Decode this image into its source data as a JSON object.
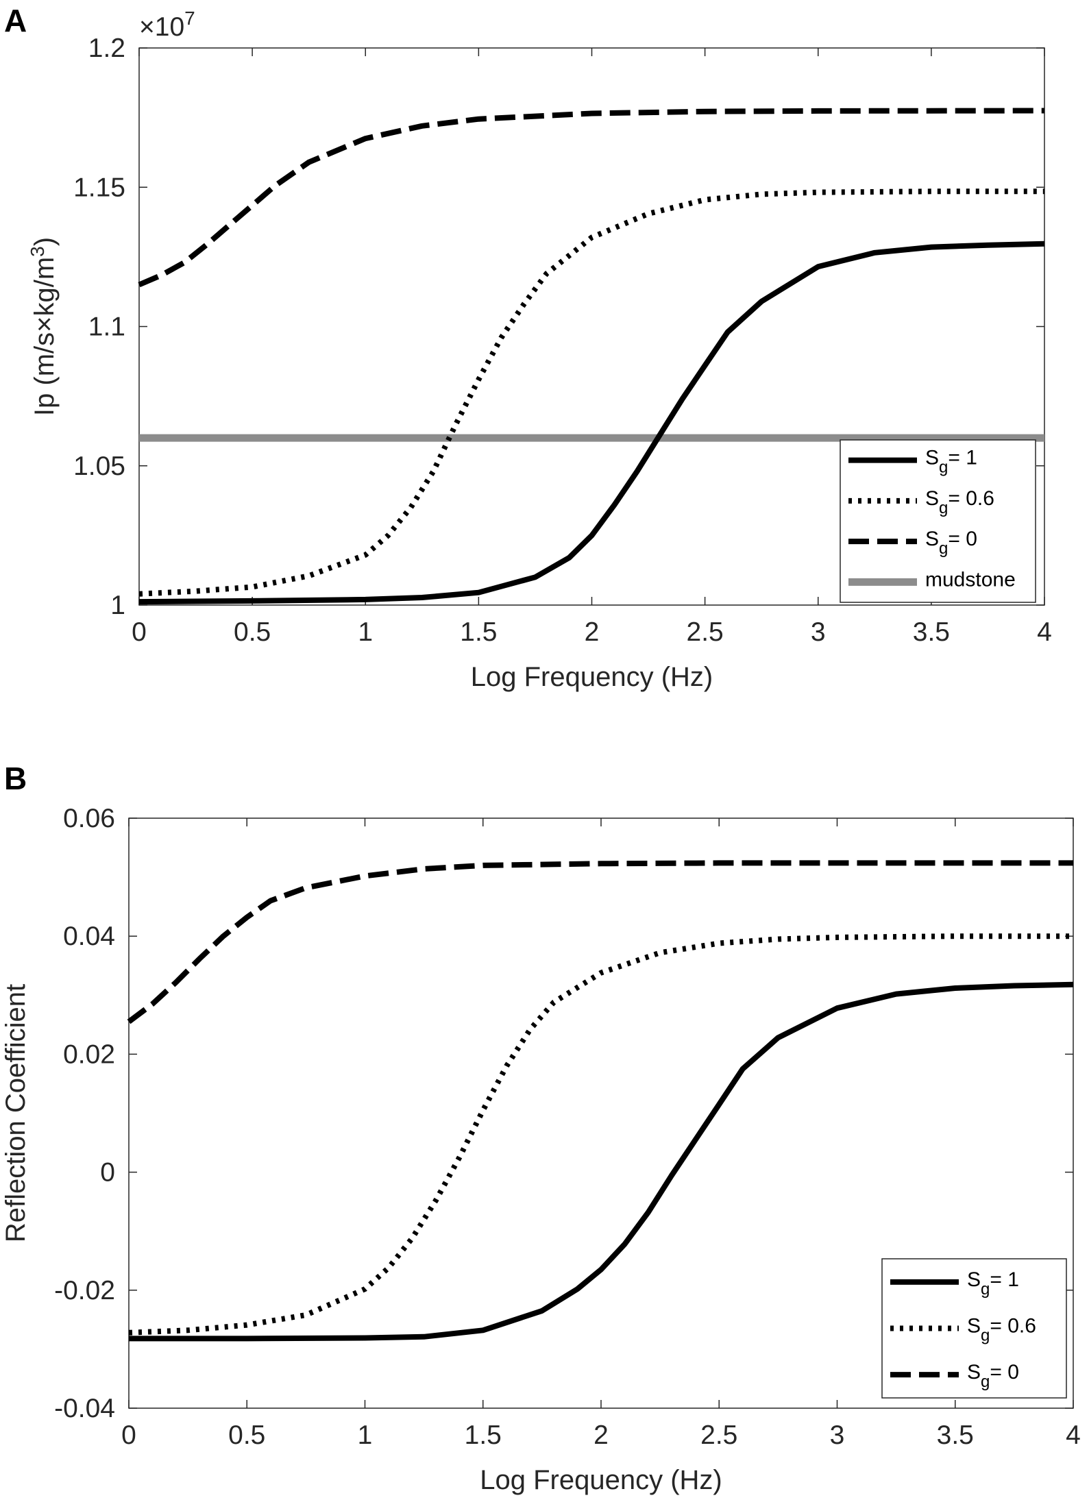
{
  "chart_data": [
    {
      "panel_label": "A",
      "type": "line",
      "xlabel": "Log Frequency (Hz)",
      "ylabel_main": "Ip (m/s×kg/m",
      "ylabel_sup": "3",
      "ylabel_end": ")",
      "y_exponent_prefix": "×10",
      "y_exponent_power": "7",
      "xlim": [
        0,
        4
      ],
      "ylim": [
        1.0,
        1.2
      ],
      "x_ticks": [
        0,
        0.5,
        1,
        1.5,
        2,
        2.5,
        3,
        3.5,
        4
      ],
      "x_tick_labels": [
        "0",
        "0.5",
        "1",
        "1.5",
        "2",
        "2.5",
        "3",
        "3.5",
        "4"
      ],
      "y_ticks": [
        1.0,
        1.05,
        1.1,
        1.15,
        1.2
      ],
      "y_tick_labels": [
        "1",
        "1.05",
        "1.1",
        "1.15",
        "1.2"
      ],
      "legend_position": "bottom-right",
      "series": [
        {
          "name": "Sg = 1",
          "legend_main": "S",
          "legend_sub": "g",
          "legend_rest": "= 1",
          "style": "solid",
          "color": "#000000",
          "x": [
            0,
            0.5,
            1,
            1.25,
            1.5,
            1.75,
            1.9,
            2.0,
            2.1,
            2.2,
            2.3,
            2.4,
            2.5,
            2.6,
            2.75,
            3.0,
            3.25,
            3.5,
            3.75,
            4
          ],
          "y": [
            1.0012,
            1.0015,
            1.002,
            1.0027,
            1.0045,
            1.01,
            1.017,
            1.025,
            1.036,
            1.048,
            1.061,
            1.074,
            1.086,
            1.098,
            1.109,
            1.1215,
            1.1265,
            1.1285,
            1.1292,
            1.1297
          ]
        },
        {
          "name": "Sg = 0.6",
          "legend_main": "S",
          "legend_sub": "g",
          "legend_rest": "= 0.6",
          "style": "dotted",
          "color": "#000000",
          "x": [
            0,
            0.25,
            0.5,
            0.75,
            1.0,
            1.1,
            1.2,
            1.3,
            1.4,
            1.5,
            1.6,
            1.7,
            1.8,
            2.0,
            2.25,
            2.5,
            2.75,
            3.0,
            3.5,
            4
          ],
          "y": [
            1.004,
            1.005,
            1.0065,
            1.0105,
            1.018,
            1.025,
            1.035,
            1.048,
            1.065,
            1.081,
            1.096,
            1.108,
            1.119,
            1.132,
            1.1405,
            1.1455,
            1.1475,
            1.1482,
            1.1485,
            1.1485
          ]
        },
        {
          "name": "Sg = 0",
          "legend_main": "S",
          "legend_sub": "g",
          "legend_rest": "= 0",
          "style": "dashed",
          "color": "#000000",
          "x": [
            0,
            0.1,
            0.2,
            0.3,
            0.4,
            0.5,
            0.6,
            0.75,
            1.0,
            1.25,
            1.5,
            2.0,
            2.5,
            3.0,
            4
          ],
          "y": [
            1.115,
            1.1185,
            1.123,
            1.1295,
            1.1365,
            1.1435,
            1.1505,
            1.159,
            1.1675,
            1.172,
            1.1745,
            1.1765,
            1.1772,
            1.1774,
            1.1775
          ]
        },
        {
          "name": "mudstone",
          "legend_main": "mudstone",
          "legend_sub": "",
          "legend_rest": "",
          "style": "solid-gray",
          "color": "#8c8c8c",
          "x": [
            0,
            4
          ],
          "y": [
            1.06,
            1.06
          ]
        }
      ]
    },
    {
      "panel_label": "B",
      "type": "line",
      "xlabel": "Log Frequency (Hz)",
      "ylabel_main": "Reflection Coefficient",
      "ylabel_sup": "",
      "ylabel_end": "",
      "y_exponent_prefix": "",
      "y_exponent_power": "",
      "xlim": [
        0,
        4
      ],
      "ylim": [
        -0.04,
        0.06
      ],
      "x_ticks": [
        0,
        0.5,
        1,
        1.5,
        2,
        2.5,
        3,
        3.5,
        4
      ],
      "x_tick_labels": [
        "0",
        "0.5",
        "1",
        "1.5",
        "2",
        "2.5",
        "3",
        "3.5",
        "4"
      ],
      "y_ticks": [
        -0.04,
        -0.02,
        0,
        0.02,
        0.04,
        0.06
      ],
      "y_tick_labels": [
        "-0.04",
        "-0.02",
        "0",
        "0.02",
        "0.04",
        "0.06"
      ],
      "legend_position": "bottom-right",
      "series": [
        {
          "name": "Sg = 1",
          "legend_main": "S",
          "legend_sub": "g",
          "legend_rest": "= 1",
          "style": "solid",
          "color": "#000000",
          "x": [
            0,
            0.5,
            1,
            1.25,
            1.5,
            1.75,
            1.9,
            2.0,
            2.1,
            2.2,
            2.3,
            2.4,
            2.5,
            2.6,
            2.75,
            3.0,
            3.25,
            3.5,
            3.75,
            4
          ],
          "y": [
            -0.0282,
            -0.0282,
            -0.0281,
            -0.0279,
            -0.0268,
            -0.0235,
            -0.0198,
            -0.0165,
            -0.0122,
            -0.0068,
            -0.0005,
            0.0055,
            0.0115,
            0.0175,
            0.0228,
            0.0278,
            0.0302,
            0.0312,
            0.0316,
            0.0318
          ]
        },
        {
          "name": "Sg = 0.6",
          "legend_main": "S",
          "legend_sub": "g",
          "legend_rest": "= 0.6",
          "style": "dotted",
          "color": "#000000",
          "x": [
            0,
            0.25,
            0.5,
            0.75,
            1.0,
            1.1,
            1.2,
            1.3,
            1.4,
            1.5,
            1.6,
            1.7,
            1.8,
            2.0,
            2.25,
            2.5,
            2.75,
            3.0,
            3.5,
            4
          ],
          "y": [
            -0.0272,
            -0.0268,
            -0.0259,
            -0.0242,
            -0.0198,
            -0.0162,
            -0.0112,
            -0.0048,
            0.0025,
            0.0105,
            0.018,
            0.0242,
            0.0288,
            0.0338,
            0.0372,
            0.0388,
            0.0395,
            0.0398,
            0.04,
            0.04
          ]
        },
        {
          "name": "Sg = 0",
          "legend_main": "S",
          "legend_sub": "g",
          "legend_rest": "= 0",
          "style": "dashed",
          "color": "#000000",
          "x": [
            0,
            0.1,
            0.2,
            0.3,
            0.4,
            0.5,
            0.6,
            0.75,
            1.0,
            1.25,
            1.5,
            2.0,
            2.5,
            3.0,
            4
          ],
          "y": [
            0.0255,
            0.0285,
            0.0322,
            0.0362,
            0.04,
            0.0432,
            0.046,
            0.0482,
            0.0502,
            0.0514,
            0.052,
            0.0523,
            0.0524,
            0.0524,
            0.0524
          ]
        }
      ]
    }
  ]
}
